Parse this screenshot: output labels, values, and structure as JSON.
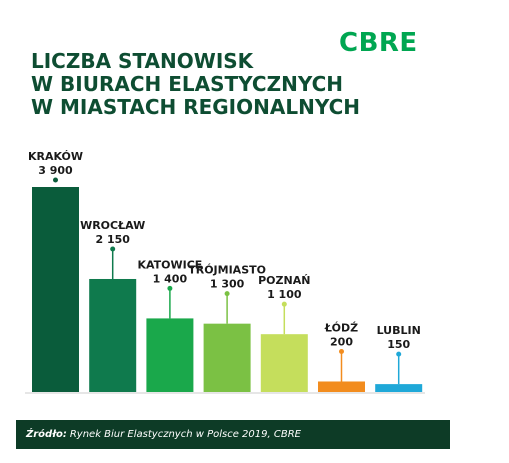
{
  "logo": "CBRE",
  "title_lines": [
    "LICZBA STANOWISK",
    "W BIURACH ELASTYCZNYCH",
    "W MIASTACH REGIONALNYCH"
  ],
  "colors": {
    "logo": "#00a651",
    "title": "#0e4d32",
    "footer_bg": "#0d3b26",
    "axis": "#cccccc"
  },
  "chart_data": {
    "type": "bar",
    "categories": [
      "KRAKÓW",
      "WROCŁAW",
      "KATOWICE",
      "TRÓJMIASTO",
      "POZNAŃ",
      "ŁÓDŹ",
      "LUBLIN"
    ],
    "values": [
      3900,
      2150,
      1400,
      1300,
      1100,
      200,
      150
    ],
    "value_labels": [
      "3 900",
      "2 150",
      "1 400",
      "1 300",
      "1 100",
      "200",
      "150"
    ],
    "colors": [
      "#0a5c3b",
      "#0f7a4d",
      "#1aa84b",
      "#7bc144",
      "#c5de5c",
      "#f28c1e",
      "#1fa8d8"
    ],
    "ylim": [
      0,
      3900
    ]
  },
  "footer": {
    "source_label": "Źródło:",
    "source_text": "Rynek Biur Elastycznych w Polsce 2019, CBRE"
  }
}
